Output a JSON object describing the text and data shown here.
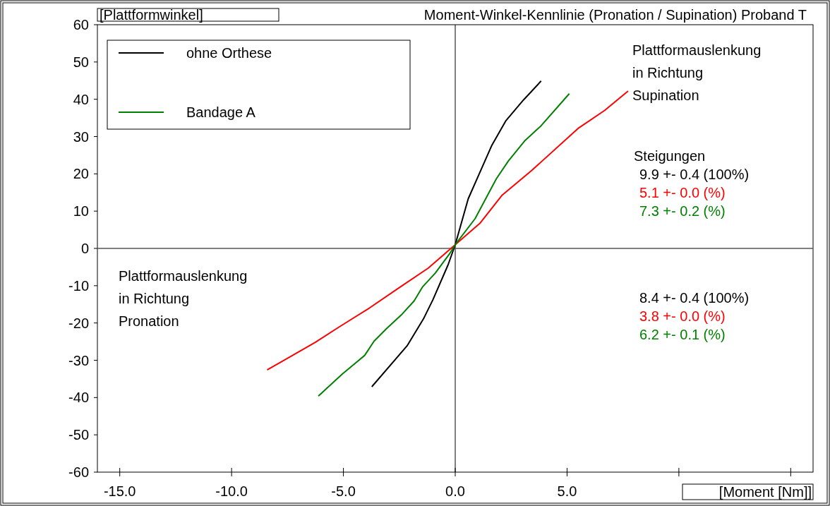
{
  "chart_data": {
    "type": "line",
    "title": "Moment-Winkel-Kennlinie (Pronation / Supination) Proband T",
    "xlabel": "[Moment [Nm]]",
    "ylabel": "[Plattformwinkel]",
    "xlim": [
      -16,
      16
    ],
    "ylim": [
      -60,
      60
    ],
    "xticks": [
      {
        "value": -15,
        "label": "-15.0"
      },
      {
        "value": -10,
        "label": "-10.0"
      },
      {
        "value": -5,
        "label": "-5.0"
      },
      {
        "value": 0,
        "label": "0.0"
      },
      {
        "value": 5,
        "label": "5.0"
      },
      {
        "value": 10,
        "label": null
      },
      {
        "value": 15,
        "label": null
      }
    ],
    "yticks": [
      -60,
      -50,
      -40,
      -30,
      -20,
      -10,
      0,
      10,
      20,
      30,
      40,
      50,
      60
    ],
    "grid": false,
    "legend": "top left",
    "marker": "none",
    "line_style": "solid",
    "series": [
      {
        "name": "ohne Orthese",
        "color": "#000000",
        "x": [
          -3.73,
          -2.15,
          -1.42,
          -1.0,
          -0.32,
          0,
          0.58,
          1.64,
          2.27,
          3.05,
          3.84
        ],
        "values": [
          -37.1,
          -26.1,
          -18.9,
          -13.8,
          -4.4,
          1,
          13.3,
          27.7,
          34.3,
          39.8,
          44.9
        ]
      },
      {
        "color": "#ff0000",
        "x": [
          -8.41,
          -6.26,
          -5.2,
          -3.84,
          -2.47,
          -1.21,
          0,
          1.1,
          2.1,
          3.42,
          5.52,
          6.68,
          7.73
        ],
        "values": [
          -32.6,
          -25.2,
          -21.1,
          -16.0,
          -10.4,
          -5.3,
          1,
          6.7,
          14.3,
          20.9,
          32.3,
          37.0,
          42.2
        ]
      },
      {
        "name": "Bandage A",
        "color": "#008000",
        "x": [
          -6.12,
          -5.05,
          -4.05,
          -3.63,
          -3.05,
          -2.42,
          -1.84,
          -1.47,
          -0.89,
          -0.26,
          0,
          0.89,
          1.84,
          2.37,
          3.1,
          3.84,
          5.1
        ],
        "values": [
          -39.6,
          -33.7,
          -28.7,
          -24.9,
          -21.4,
          -17.9,
          -14.1,
          -10.4,
          -6.6,
          -1.5,
          1,
          8.0,
          18.7,
          23.4,
          28.8,
          32.9,
          41.5
        ]
      }
    ],
    "annotations": [
      "Plattformauslenkung\nin Richtung\nSupination",
      "Plattformauslenkung\nin Richtung\nPronation",
      "Steigungen",
      "9.9 +- 0.4  (100%)",
      "5.1 +- 0.0  (%)",
      "7.3 +- 0.2  (%)",
      "8.4 +- 0.4  (100%)",
      "3.8 +- 0.0  (%)",
      "6.2 +- 0.1  (%)"
    ]
  }
}
